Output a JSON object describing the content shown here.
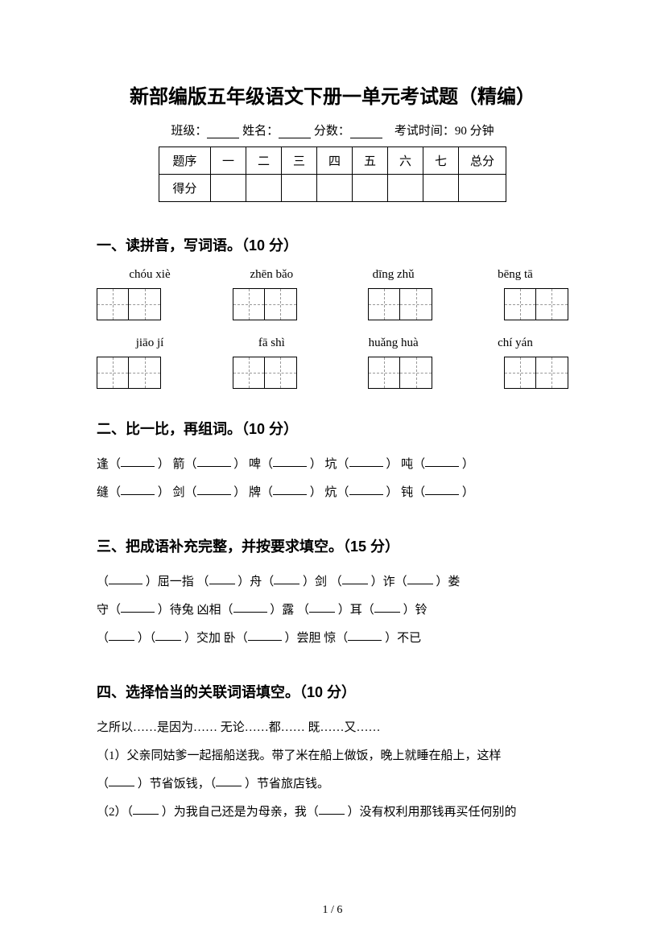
{
  "title": "新部编版五年级语文下册一单元考试题（精编）",
  "header": {
    "class_label": "班级：",
    "name_label": "姓名：",
    "score_label": "分数：",
    "time_label": "考试时间：90 分钟"
  },
  "score_table": {
    "row1": [
      "题序",
      "一",
      "二",
      "三",
      "四",
      "五",
      "六",
      "七",
      "总分"
    ],
    "row2_label": "得分"
  },
  "section1": {
    "heading": "一、读拼音，写词语。（10 分）",
    "pinyin_row1": [
      "chóu xiè",
      "zhēn bǎo",
      "dīng zhǔ",
      "bēng tā"
    ],
    "pinyin_row2": [
      "jiāo jí",
      "fā   shì",
      "huǎng huà",
      "chí yán"
    ]
  },
  "section2": {
    "heading": "二、比一比，再组词。（10 分）",
    "row1": [
      "逢（",
      "）  箭（",
      "）  啤（",
      "）  坑（",
      "）  吨（",
      "）"
    ],
    "row2": [
      "缝（",
      "）  剑（",
      "）  牌（",
      "）  炕（",
      "）  钝（",
      "）"
    ]
  },
  "section3": {
    "heading": "三、把成语补充完整，并按要求填空。（15 分）",
    "line1_parts": [
      "（",
      "）屈一指    （",
      "）舟（",
      "）剑    （",
      "）诈（",
      "）娄"
    ],
    "line2_parts": [
      "守（",
      "）待兔    凶相（",
      "）露    （",
      "）耳（",
      "）铃"
    ],
    "line3_parts": [
      "（",
      "）（",
      "）交加   卧（",
      "）尝胆      惊（",
      "）不已"
    ]
  },
  "section4": {
    "heading": "四、选择恰当的关联词语填空。（10 分）",
    "options": "之所以……是因为……    无论……都……    既……又……",
    "q1_a": "（1）父亲同姑爹一起摇船送我。带了米在船上做饭，晚上就睡在船上，这样",
    "q1_b_parts": [
      "（",
      "）节省饭钱，（",
      "）节省旅店钱。"
    ],
    "q2_parts": [
      "（2）（",
      "）为我自己还是为母亲，我（",
      "）没有权利用那钱再买任何别的"
    ]
  },
  "page_num": "1 / 6"
}
